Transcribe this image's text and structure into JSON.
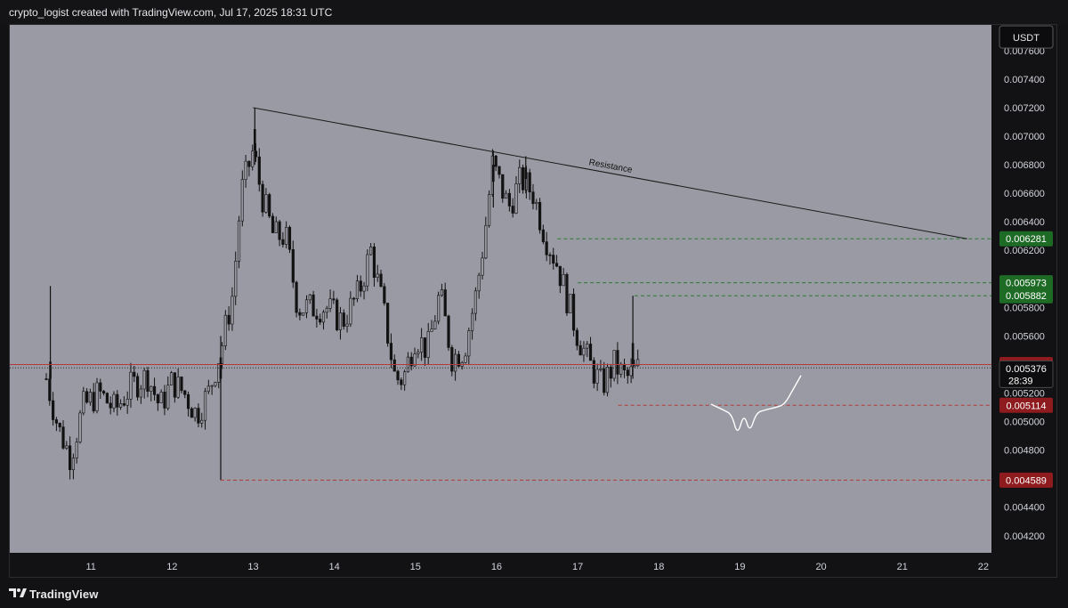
{
  "header": {
    "text": "crypto_logist created with TradingView.com, Jul 17, 2025 18:31 UTC"
  },
  "footer": {
    "brand": "TradingView"
  },
  "colors": {
    "background": "#9a9aa4",
    "candle": "#121212",
    "green_tag": "#1e6b25",
    "red_tag": "#8e1b1d",
    "dark_tag": "#0d0d0f"
  },
  "chart_data": {
    "type": "candlestick",
    "currency_label": "USDT",
    "x_ticks": [
      "11",
      "12",
      "13",
      "14",
      "15",
      "16",
      "17",
      "18",
      "19",
      "20",
      "21",
      "22"
    ],
    "y_ticks": [
      "0.004200",
      "0.004400",
      "0.004600",
      "0.004800",
      "0.005000",
      "0.005200",
      "0.005400",
      "0.005600",
      "0.005800",
      "0.006000",
      "0.006200",
      "0.006400",
      "0.006600",
      "0.006800",
      "0.007000",
      "0.007200",
      "0.007400",
      "0.007600"
    ],
    "ylim": [
      0.00408,
      0.00778
    ],
    "x_day_range": [
      10.0,
      22.1
    ],
    "grid": false,
    "price_tags": [
      {
        "value": "0.006281",
        "price": 0.006281,
        "color": "green"
      },
      {
        "value": "0.005973",
        "price": 0.005973,
        "color": "green"
      },
      {
        "value": "0.005882",
        "price": 0.005882,
        "color": "green"
      },
      {
        "value": "0.005400",
        "price": 0.0054,
        "color": "red"
      },
      {
        "value": "0.005376",
        "price": 0.005376,
        "color": "dark",
        "countdown": "28:39"
      },
      {
        "value": "0.005114",
        "price": 0.005114,
        "color": "red"
      },
      {
        "value": "0.004589",
        "price": 0.004589,
        "color": "red"
      }
    ],
    "horizontal_levels": [
      {
        "price": 0.006281,
        "from_day": 16.75,
        "color": "green"
      },
      {
        "price": 0.005973,
        "from_day": 17.0,
        "color": "green"
      },
      {
        "price": 0.005882,
        "from_day": 17.7,
        "color": "green"
      },
      {
        "price": 0.005114,
        "from_day": 17.5,
        "color": "red"
      },
      {
        "price": 0.004589,
        "from_day": 12.6,
        "color": "red"
      },
      {
        "price": 0.0054,
        "from_day": 10.0,
        "color": "red_solid"
      },
      {
        "price": 0.005376,
        "from_day": 10.0,
        "color": "dotted"
      }
    ],
    "trendline": {
      "label": "Resistance",
      "start": {
        "day": 13.0,
        "price": 0.0072
      },
      "end": {
        "day": 21.8,
        "price": 0.006281
      }
    },
    "projection_path": [
      {
        "day": 18.65,
        "price": 0.00512
      },
      {
        "day": 18.8,
        "price": 0.00508
      },
      {
        "day": 18.9,
        "price": 0.00505
      },
      {
        "day": 18.97,
        "price": 0.0049
      },
      {
        "day": 19.05,
        "price": 0.00506
      },
      {
        "day": 19.12,
        "price": 0.00492
      },
      {
        "day": 19.2,
        "price": 0.00506
      },
      {
        "day": 19.3,
        "price": 0.00508
      },
      {
        "day": 19.45,
        "price": 0.0051
      },
      {
        "day": 19.55,
        "price": 0.00512
      },
      {
        "day": 19.65,
        "price": 0.00522
      },
      {
        "day": 19.75,
        "price": 0.00532
      }
    ],
    "price_anchors": [
      {
        "day": 10.45,
        "price": 0.0053
      },
      {
        "day": 10.6,
        "price": 0.00495
      },
      {
        "day": 10.75,
        "price": 0.00475
      },
      {
        "day": 10.9,
        "price": 0.0051
      },
      {
        "day": 11.1,
        "price": 0.0052
      },
      {
        "day": 11.3,
        "price": 0.00508
      },
      {
        "day": 11.5,
        "price": 0.00525
      },
      {
        "day": 11.7,
        "price": 0.00532
      },
      {
        "day": 11.85,
        "price": 0.0051
      },
      {
        "day": 12.0,
        "price": 0.00528
      },
      {
        "day": 12.15,
        "price": 0.0052
      },
      {
        "day": 12.3,
        "price": 0.00505
      },
      {
        "day": 12.45,
        "price": 0.0052
      },
      {
        "day": 12.6,
        "price": 0.0055
      },
      {
        "day": 12.75,
        "price": 0.0059
      },
      {
        "day": 12.85,
        "price": 0.0066
      },
      {
        "day": 13.0,
        "price": 0.0069
      },
      {
        "day": 13.1,
        "price": 0.0066
      },
      {
        "day": 13.25,
        "price": 0.0063
      },
      {
        "day": 13.4,
        "price": 0.0063
      },
      {
        "day": 13.55,
        "price": 0.0058
      },
      {
        "day": 13.7,
        "price": 0.0058
      },
      {
        "day": 13.9,
        "price": 0.0058
      },
      {
        "day": 14.1,
        "price": 0.0057
      },
      {
        "day": 14.3,
        "price": 0.0059
      },
      {
        "day": 14.45,
        "price": 0.0062
      },
      {
        "day": 14.6,
        "price": 0.0058
      },
      {
        "day": 14.75,
        "price": 0.0053
      },
      {
        "day": 14.85,
        "price": 0.0053
      },
      {
        "day": 15.0,
        "price": 0.0056
      },
      {
        "day": 15.15,
        "price": 0.0055
      },
      {
        "day": 15.3,
        "price": 0.0059
      },
      {
        "day": 15.45,
        "price": 0.00545
      },
      {
        "day": 15.6,
        "price": 0.0055
      },
      {
        "day": 15.75,
        "price": 0.0059
      },
      {
        "day": 15.85,
        "price": 0.0063
      },
      {
        "day": 15.95,
        "price": 0.0068
      },
      {
        "day": 16.15,
        "price": 0.0065
      },
      {
        "day": 16.3,
        "price": 0.0067
      },
      {
        "day": 16.45,
        "price": 0.0066
      },
      {
        "day": 16.6,
        "price": 0.0063
      },
      {
        "day": 16.75,
        "price": 0.0061
      },
      {
        "day": 16.9,
        "price": 0.0058
      },
      {
        "day": 17.0,
        "price": 0.0056
      },
      {
        "day": 17.15,
        "price": 0.0054
      },
      {
        "day": 17.3,
        "price": 0.00525
      },
      {
        "day": 17.45,
        "price": 0.0054
      },
      {
        "day": 17.6,
        "price": 0.0053
      },
      {
        "day": 17.75,
        "price": 0.005376
      }
    ],
    "spike_candles": [
      {
        "day": 10.5,
        "high": 0.00595,
        "low": 0.0052,
        "open": 0.0053,
        "close": 0.00542
      },
      {
        "day": 12.6,
        "high": 0.0056,
        "low": 0.004589,
        "open": 0.00545,
        "close": 0.0053
      },
      {
        "day": 13.02,
        "high": 0.0072,
        "low": 0.0068,
        "open": 0.0069,
        "close": 0.00705
      },
      {
        "day": 15.96,
        "high": 0.0069,
        "low": 0.0065,
        "open": 0.00668,
        "close": 0.0068
      },
      {
        "day": 16.36,
        "high": 0.00686,
        "low": 0.0066,
        "open": 0.0067,
        "close": 0.00678
      },
      {
        "day": 17.68,
        "high": 0.005882,
        "low": 0.0053,
        "open": 0.0054,
        "close": 0.00555
      }
    ]
  }
}
